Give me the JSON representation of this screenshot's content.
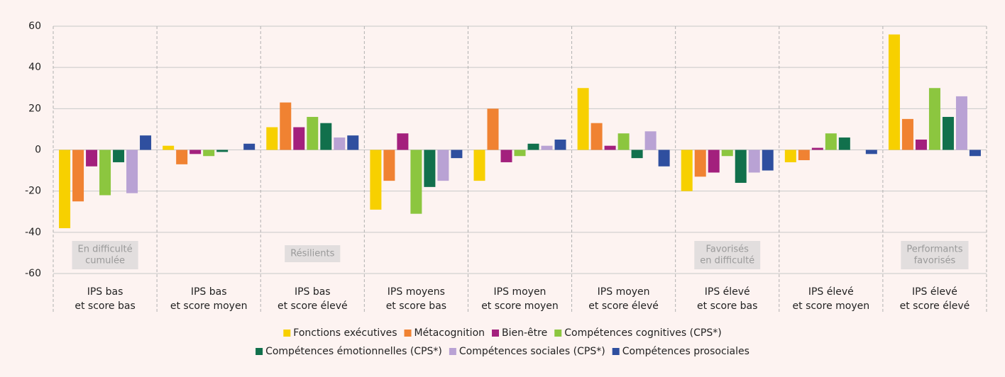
{
  "chart_data": {
    "type": "bar",
    "categories": [
      [
        "IPS bas",
        "et score bas"
      ],
      [
        "IPS bas",
        "et score moyen"
      ],
      [
        "IPS bas",
        "et score élevé"
      ],
      [
        "IPS moyens",
        "et score bas"
      ],
      [
        "IPS moyen",
        "et score moyen"
      ],
      [
        "IPS moyen",
        "et score élevé"
      ],
      [
        "IPS élevé",
        "et score bas"
      ],
      [
        "IPS élevé",
        "et score moyen"
      ],
      [
        "IPS élevé",
        "et score élevé"
      ]
    ],
    "group_labels": [
      [
        "En difficulté",
        "cumulée"
      ],
      null,
      [
        "Résilients"
      ],
      null,
      null,
      null,
      [
        "Favorisés",
        "en difficulté"
      ],
      null,
      [
        "Performants",
        "favorisés"
      ]
    ],
    "series": [
      {
        "name": "Fonctions exécutives",
        "color": "#f7d000",
        "values": [
          -38,
          2,
          11,
          -29,
          -15,
          30,
          -20,
          -6,
          56
        ]
      },
      {
        "name": "Métacognition",
        "color": "#f08232",
        "values": [
          -25,
          -7,
          23,
          -15,
          20,
          13,
          -13,
          -5,
          15
        ]
      },
      {
        "name": "Bien-être",
        "color": "#a3207d",
        "values": [
          -8,
          -2,
          11,
          8,
          -6,
          2,
          -11,
          1,
          5
        ]
      },
      {
        "name": "Compétences cognitives (CPS*)",
        "color": "#8cc63f",
        "values": [
          -22,
          -3,
          16,
          -31,
          -3,
          8,
          -3,
          8,
          30
        ]
      },
      {
        "name": "Compétences émotionnelles (CPS*)",
        "color": "#11704c",
        "values": [
          -6,
          -1,
          13,
          -18,
          3,
          -4,
          -16,
          6,
          16
        ]
      },
      {
        "name": "Compétences sociales (CPS*)",
        "color": "#b9a2d4",
        "values": [
          -21,
          0,
          6,
          -15,
          2,
          9,
          -11,
          0,
          26
        ]
      },
      {
        "name": "Compétences prosociales",
        "color": "#2f4f9f",
        "values": [
          7,
          3,
          7,
          -4,
          5,
          -8,
          -10,
          -2,
          -3
        ]
      }
    ],
    "ylim": [
      -60,
      60
    ],
    "yticks": [
      -60,
      -40,
      -20,
      0,
      20,
      40,
      60
    ],
    "grid": true
  }
}
